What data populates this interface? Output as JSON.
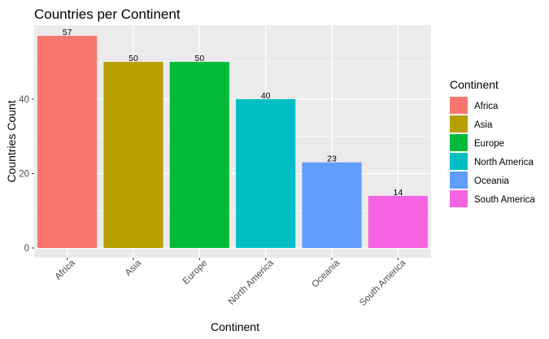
{
  "chart_data": {
    "type": "bar",
    "title": "Countries per Continent",
    "xlabel": "Continent",
    "ylabel": "Countries Count",
    "categories": [
      "Africa",
      "Asia",
      "Europe",
      "North America",
      "Oceania",
      "South America"
    ],
    "values": [
      57,
      50,
      50,
      40,
      23,
      14
    ],
    "colors": [
      "#F8766D",
      "#B79F00",
      "#00BA38",
      "#00BFC4",
      "#619CFF",
      "#F564E3"
    ],
    "yticks": [
      0,
      20,
      40
    ],
    "ylim": [
      0,
      59.85
    ],
    "grid": true,
    "legend": {
      "title": "Continent",
      "position": "right",
      "entries": [
        "Africa",
        "Asia",
        "Europe",
        "North America",
        "Oceania",
        "South America"
      ]
    }
  }
}
